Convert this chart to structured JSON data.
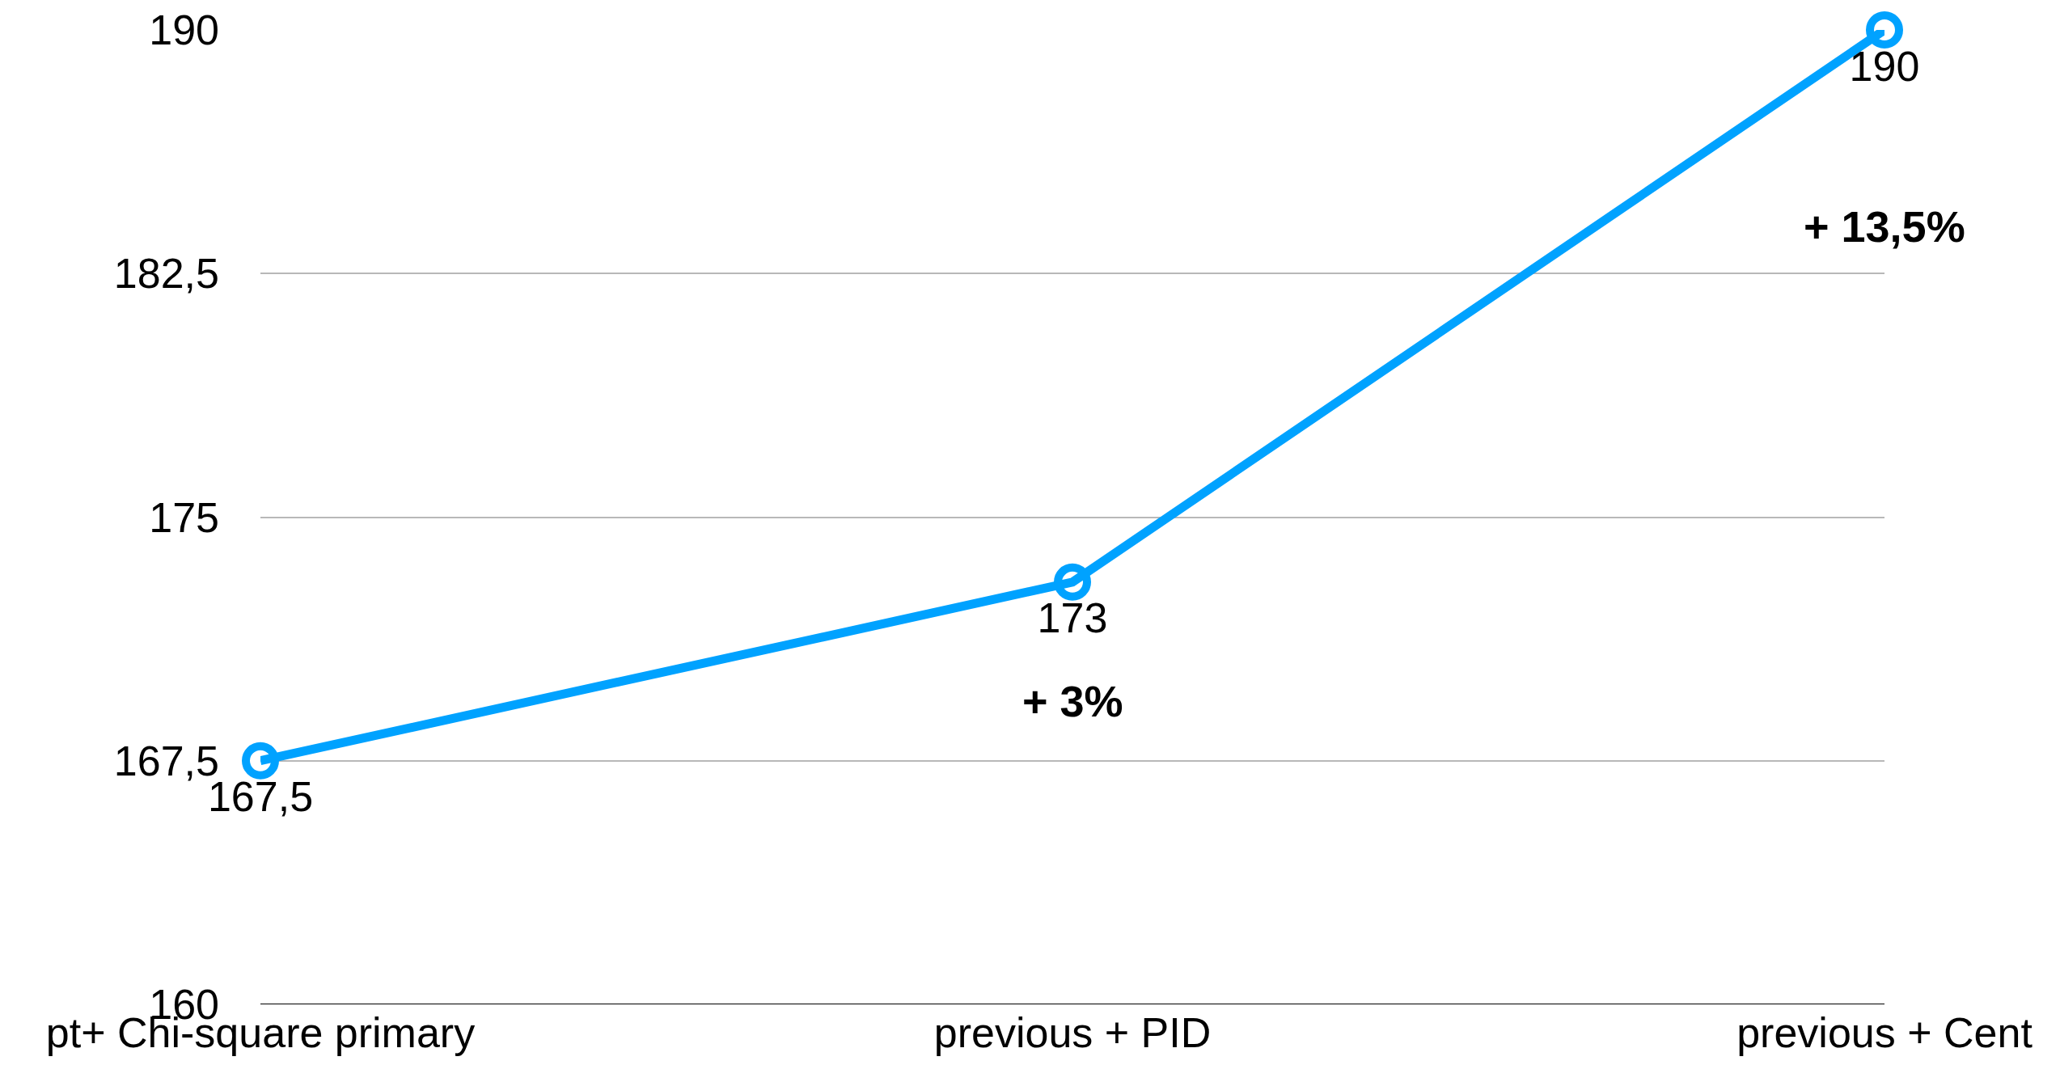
{
  "chart_data": {
    "type": "line",
    "categories": [
      "pt+ Chi-square primary",
      "previous + PID",
      "previous + Cent"
    ],
    "series": [
      {
        "color": "#00a2ff",
        "values": [
          167.5,
          173,
          190
        ],
        "value_labels": [
          "167,5",
          "173",
          "190"
        ]
      }
    ],
    "ylim": [
      160,
      190
    ],
    "yticks": [
      160,
      {
        "value": 167.5,
        "label": "167,5"
      },
      175,
      {
        "value": 182.5,
        "label": "182,5"
      },
      190
    ],
    "grid": "y",
    "marker": "circle",
    "line_style": "solid",
    "annotations": [
      "+ 3%",
      "+ 13,5%"
    ]
  }
}
